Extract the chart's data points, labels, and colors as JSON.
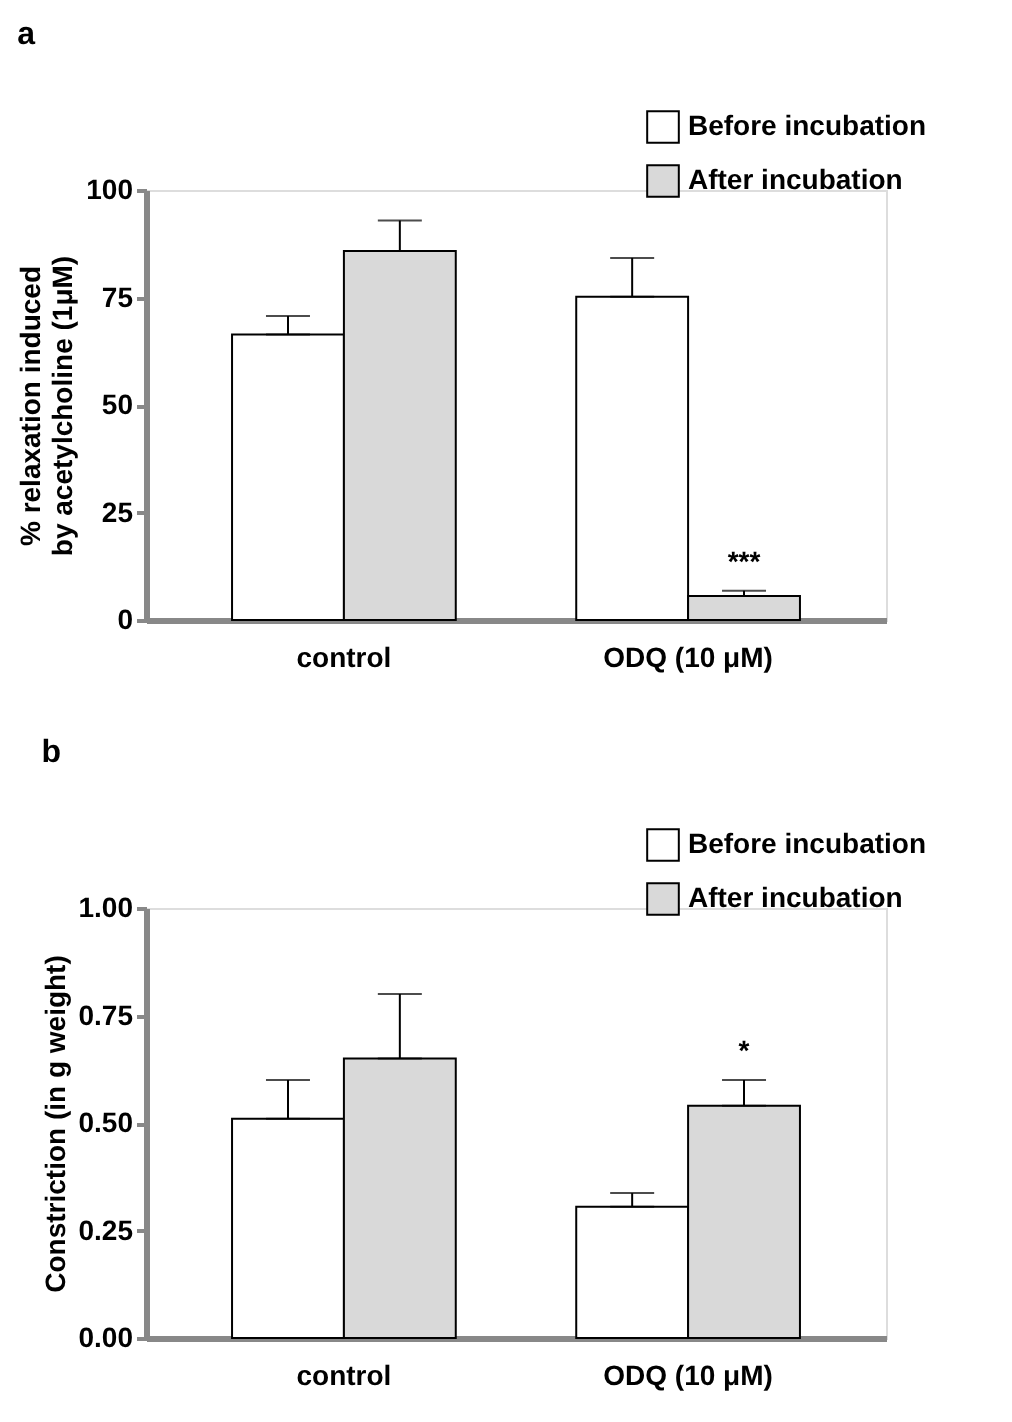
{
  "chart_data": [
    {
      "type": "bar",
      "title": "a",
      "ylabel": "% relaxation induced by acetylcholine (1μM)",
      "categories": [
        "control",
        "ODQ (10 μM)"
      ],
      "series": [
        {
          "name": "Before incubation",
          "color": "#ffffff",
          "values": [
            66.4,
            75.2
          ],
          "errors": [
            [
              66.4,
              70.7
            ],
            [
              75.2,
              84.2
            ]
          ]
        },
        {
          "name": "After incubation",
          "color": "#d9d9d9",
          "values": [
            85.8,
            5.6
          ],
          "errors": [
            [
              85.8,
              92.9
            ],
            [
              5.6,
              6.8
            ]
          ]
        }
      ],
      "ylim": [
        0,
        100
      ],
      "yticks": [
        0,
        25,
        50,
        75,
        100
      ],
      "grid": false,
      "legend": "top right",
      "annotations": [
        "***"
      ]
    },
    {
      "type": "bar",
      "title": "b",
      "ylabel": "Constriction (in g weight)",
      "categories": [
        "control",
        "ODQ (10 μM)"
      ],
      "series": [
        {
          "name": "Before incubation",
          "color": "#ffffff",
          "values": [
            0.51,
            0.305
          ],
          "errors": [
            [
              0.51,
              0.6
            ],
            [
              0.305,
              0.337
            ]
          ]
        },
        {
          "name": "After incubation",
          "color": "#d9d9d9",
          "values": [
            0.65,
            0.54
          ],
          "errors": [
            [
              0.65,
              0.8
            ],
            [
              0.54,
              0.6
            ]
          ]
        }
      ],
      "ylim": [
        0,
        1
      ],
      "yticks": [
        {
          "value": 0,
          "label": "0.00"
        },
        {
          "value": 0.25,
          "label": "0.25"
        },
        {
          "value": 0.5,
          "label": "0.50"
        },
        {
          "value": 0.75,
          "label": "0.75"
        },
        {
          "value": 1,
          "label": "1.00"
        }
      ],
      "grid": false,
      "legend": "top right",
      "annotations": [
        "*"
      ]
    }
  ]
}
